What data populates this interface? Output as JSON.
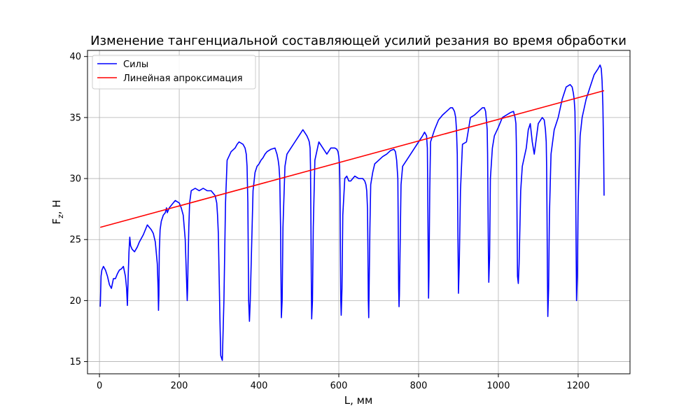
{
  "chart_data": {
    "type": "line",
    "title": "Изменение тангенциальной составляющей усилий резания во время обработки",
    "xlabel": "L, мм",
    "ylabel": {
      "main": "F",
      "sub": "z",
      "tail": ", Н"
    },
    "xlim": [
      -30,
      1330
    ],
    "ylim": [
      14,
      40.5
    ],
    "xticks": [
      0,
      200,
      400,
      600,
      800,
      1000,
      1200
    ],
    "yticks": [
      15,
      20,
      25,
      30,
      35,
      40
    ],
    "grid": true,
    "legend_position": "top-left",
    "series": [
      {
        "name": "Силы",
        "color": "#0000ff",
        "x": [
          2,
          4,
          6,
          10,
          15,
          20,
          25,
          30,
          35,
          40,
          45,
          50,
          55,
          60,
          65,
          68,
          70,
          72,
          74,
          76,
          78,
          82,
          88,
          95,
          100,
          110,
          120,
          125,
          130,
          135,
          140,
          145,
          147,
          148,
          149,
          150,
          152,
          155,
          160,
          165,
          168,
          170,
          175,
          180,
          185,
          190,
          200,
          205,
          210,
          215,
          218,
          220,
          221,
          222,
          224,
          226,
          230,
          240,
          250,
          260,
          270,
          280,
          290,
          294,
          296,
          298,
          300,
          302,
          304,
          306,
          308,
          312,
          316,
          320,
          330,
          340,
          345,
          350,
          360,
          365,
          368,
          370,
          372,
          373,
          374,
          376,
          378,
          385,
          390,
          395,
          400,
          405,
          410,
          415,
          420,
          430,
          440,
          445,
          448,
          450,
          452,
          454,
          455,
          456,
          458,
          460,
          465,
          470,
          480,
          490,
          500,
          510,
          520,
          524,
          526,
          528,
          529,
          530,
          531,
          532,
          534,
          536,
          540,
          550,
          560,
          570,
          580,
          590,
          595,
          598,
          600,
          602,
          603,
          604,
          605,
          606,
          608,
          610,
          615,
          620,
          625,
          630,
          635,
          640,
          650,
          660,
          665,
          668,
          670,
          672,
          673,
          674,
          675,
          676,
          678,
          680,
          685,
          690,
          700,
          710,
          720,
          730,
          738,
          742,
          745,
          748,
          749,
          750,
          751,
          752,
          754,
          756,
          760,
          770,
          780,
          790,
          800,
          810,
          815,
          820,
          822,
          823,
          824,
          825,
          826,
          828,
          830,
          840,
          850,
          860,
          870,
          880,
          885,
          890,
          893,
          895,
          897,
          898,
          899,
          900,
          902,
          905,
          910,
          920,
          930,
          940,
          950,
          960,
          965,
          968,
          970,
          972,
          973,
          974,
          975,
          976,
          978,
          980,
          985,
          990,
          1000,
          1010,
          1020,
          1030,
          1038,
          1042,
          1044,
          1045,
          1046,
          1047,
          1048,
          1050,
          1052,
          1056,
          1060,
          1070,
          1075,
          1080,
          1085,
          1090,
          1100,
          1110,
          1115,
          1118,
          1120,
          1121,
          1122,
          1123,
          1124,
          1126,
          1128,
          1132,
          1140,
          1150,
          1160,
          1170,
          1180,
          1185,
          1188,
          1190,
          1192,
          1193,
          1194,
          1195,
          1196,
          1198,
          1200,
          1205,
          1210,
          1220,
          1230,
          1240,
          1250,
          1255,
          1258,
          1260,
          1262,
          1264,
          1265
        ],
        "y": [
          19.5,
          22.0,
          22.5,
          22.8,
          22.5,
          22.0,
          21.3,
          21.0,
          21.8,
          21.8,
          22.2,
          22.5,
          22.6,
          22.8,
          22.0,
          21.0,
          19.6,
          22.0,
          24.0,
          25.2,
          24.5,
          24.2,
          24.0,
          24.4,
          24.8,
          25.4,
          26.2,
          26.0,
          25.8,
          25.5,
          24.8,
          23.0,
          21.0,
          19.2,
          20.5,
          24.0,
          25.8,
          26.5,
          27.0,
          27.2,
          27.6,
          27.2,
          27.6,
          27.8,
          28.0,
          28.2,
          28.0,
          27.6,
          27.0,
          25.0,
          22.0,
          20.0,
          21.0,
          23.0,
          26.0,
          28.0,
          29.0,
          29.2,
          29.0,
          29.2,
          29.0,
          29.0,
          28.6,
          28.0,
          27.0,
          25.5,
          22.0,
          18.5,
          15.5,
          15.3,
          15.1,
          20.0,
          28.0,
          31.5,
          32.2,
          32.5,
          32.8,
          33.0,
          32.8,
          32.5,
          32.0,
          31.0,
          28.0,
          24.0,
          20.0,
          18.3,
          20.0,
          29.0,
          30.5,
          31.0,
          31.2,
          31.5,
          31.7,
          32.0,
          32.2,
          32.4,
          32.5,
          32.0,
          31.5,
          31.0,
          30.0,
          26.0,
          22.0,
          18.6,
          20.0,
          26.0,
          31.0,
          32.0,
          32.5,
          33.0,
          33.5,
          34.0,
          33.5,
          33.2,
          33.0,
          32.5,
          31.0,
          27.0,
          22.0,
          18.5,
          20.0,
          26.0,
          31.5,
          33.0,
          32.5,
          32.0,
          32.5,
          32.5,
          32.4,
          32.2,
          31.8,
          31.0,
          29.0,
          24.0,
          20.0,
          18.8,
          21.0,
          27.0,
          30.0,
          30.2,
          29.8,
          29.8,
          30.0,
          30.2,
          30.0,
          30.0,
          29.8,
          29.5,
          29.0,
          27.5,
          24.0,
          20.0,
          18.6,
          21.0,
          26.0,
          29.5,
          30.5,
          31.2,
          31.5,
          31.8,
          32.0,
          32.3,
          32.4,
          32.2,
          31.5,
          30.0,
          26.0,
          21.0,
          19.5,
          20.5,
          25.0,
          29.5,
          31.0,
          31.5,
          32.0,
          32.5,
          33.0,
          33.5,
          33.8,
          33.5,
          32.5,
          29.0,
          24.0,
          20.2,
          22.0,
          29.0,
          33.0,
          34.0,
          34.8,
          35.2,
          35.5,
          35.8,
          35.8,
          35.5,
          35.0,
          34.0,
          32.0,
          28.0,
          24.0,
          20.6,
          23.0,
          29.0,
          32.8,
          33.0,
          35.0,
          35.2,
          35.5,
          35.8,
          35.8,
          35.5,
          34.8,
          34.0,
          32.0,
          28.0,
          24.0,
          21.5,
          23.5,
          30.0,
          32.5,
          33.5,
          34.2,
          35.0,
          35.2,
          35.4,
          35.5,
          35.0,
          34.5,
          33.0,
          30.0,
          26.0,
          22.0,
          21.4,
          23.0,
          29.0,
          31.0,
          32.5,
          34.0,
          34.5,
          33.0,
          32.0,
          34.5,
          35.0,
          34.8,
          34.0,
          33.0,
          31.0,
          27.0,
          22.0,
          18.7,
          21.0,
          27.0,
          32.0,
          34.0,
          35.0,
          36.5,
          37.5,
          37.7,
          37.5,
          37.0,
          36.5,
          35.5,
          33.0,
          29.0,
          24.0,
          20.0,
          22.0,
          28.0,
          33.5,
          35.0,
          36.5,
          37.5,
          38.5,
          39.0,
          39.3,
          39.0,
          38.0,
          36.0,
          32.0,
          28.6
        ]
      },
      {
        "name": "Линейная апроксимация",
        "color": "#ff0000",
        "x": [
          2,
          1265
        ],
        "y": [
          26.0,
          37.2
        ]
      }
    ]
  }
}
